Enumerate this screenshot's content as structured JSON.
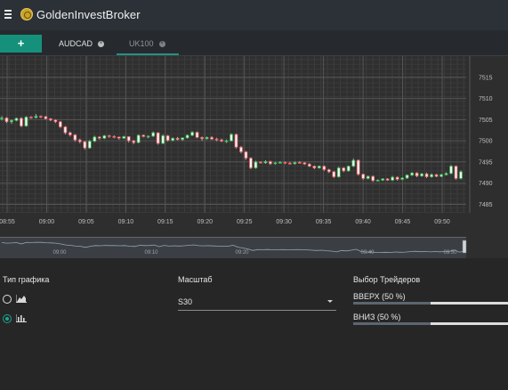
{
  "header": {
    "menu_icon": "hamburger-icon",
    "logo_icon": "gold-coin-icon",
    "brand": "GoldenInvestBroker"
  },
  "tabs": {
    "add_label": "+",
    "items": [
      {
        "label": "AUDCAD",
        "active": true
      },
      {
        "label": "UK100",
        "active": false
      }
    ]
  },
  "chart_data": {
    "type": "candlestick",
    "x_ticks": [
      "08:55",
      "09:00",
      "09:05",
      "09:10",
      "09:15",
      "09:20",
      "09:25",
      "09:30",
      "09:35",
      "09:40",
      "09:45",
      "09:50"
    ],
    "y_ticks": [
      7485,
      7490,
      7495,
      7500,
      7505,
      7510,
      7515
    ],
    "ylim": [
      7483,
      7520
    ],
    "candles": [
      [
        7505.2,
        7505.8,
        7504.8,
        7505.4
      ],
      [
        7505.4,
        7505.6,
        7504.2,
        7504.5
      ],
      [
        7504.5,
        7505.0,
        7504.0,
        7504.8
      ],
      [
        7504.8,
        7505.5,
        7504.6,
        7505.3
      ],
      [
        7505.3,
        7505.6,
        7503.2,
        7503.5
      ],
      [
        7503.5,
        7505.8,
        7503.3,
        7505.6
      ],
      [
        7505.6,
        7505.8,
        7505.2,
        7505.5
      ],
      [
        7505.5,
        7506.3,
        7505.3,
        7505.8
      ],
      [
        7505.8,
        7506.0,
        7505.4,
        7505.7
      ],
      [
        7505.7,
        7505.9,
        7505.0,
        7505.2
      ],
      [
        7505.2,
        7505.4,
        7504.6,
        7504.9
      ],
      [
        7504.9,
        7505.1,
        7504.2,
        7504.5
      ],
      [
        7504.5,
        7504.7,
        7503.0,
        7503.3
      ],
      [
        7503.3,
        7503.5,
        7501.5,
        7501.9
      ],
      [
        7501.9,
        7502.2,
        7501.0,
        7501.4
      ],
      [
        7501.4,
        7501.6,
        7499.8,
        7500.2
      ],
      [
        7500.2,
        7500.5,
        7499.4,
        7499.8
      ],
      [
        7499.8,
        7500.0,
        7497.9,
        7498.3
      ],
      [
        7498.3,
        7500.2,
        7498.1,
        7499.9
      ],
      [
        7499.9,
        7501.2,
        7499.7,
        7500.9
      ],
      [
        7500.9,
        7501.1,
        7500.3,
        7500.6
      ],
      [
        7500.6,
        7501.4,
        7500.4,
        7501.2
      ],
      [
        7501.2,
        7501.4,
        7500.7,
        7501.0
      ],
      [
        7501.0,
        7501.3,
        7500.6,
        7500.9
      ],
      [
        7500.9,
        7501.0,
        7500.3,
        7500.6
      ],
      [
        7500.6,
        7501.2,
        7500.4,
        7501.0
      ],
      [
        7501.0,
        7501.1,
        7499.6,
        7500.0
      ],
      [
        7500.0,
        7500.2,
        7499.2,
        7499.6
      ],
      [
        7499.6,
        7501.5,
        7499.4,
        7501.3
      ],
      [
        7501.3,
        7501.5,
        7500.8,
        7501.0
      ],
      [
        7501.0,
        7501.3,
        7500.6,
        7501.1
      ],
      [
        7501.1,
        7502.2,
        7500.9,
        7501.9
      ],
      [
        7501.9,
        7502.0,
        7499.1,
        7499.4
      ],
      [
        7499.4,
        7501.5,
        7499.2,
        7501.2
      ],
      [
        7501.2,
        7501.4,
        7499.8,
        7500.1
      ],
      [
        7500.1,
        7500.8,
        7499.9,
        7500.6
      ],
      [
        7500.6,
        7500.9,
        7500.1,
        7500.3
      ],
      [
        7500.3,
        7500.8,
        7500.0,
        7500.7
      ],
      [
        7500.7,
        7501.5,
        7500.5,
        7501.3
      ],
      [
        7501.3,
        7502.3,
        7501.1,
        7502.0
      ],
      [
        7502.0,
        7502.2,
        7500.6,
        7500.8
      ],
      [
        7500.8,
        7501.0,
        7500.0,
        7500.5
      ],
      [
        7500.5,
        7501.0,
        7500.3,
        7500.8
      ],
      [
        7500.8,
        7501.1,
        7500.2,
        7500.4
      ],
      [
        7500.4,
        7500.7,
        7499.9,
        7500.2
      ],
      [
        7500.2,
        7500.5,
        7499.7,
        7499.9
      ],
      [
        7499.9,
        7500.3,
        7499.5,
        7500.0
      ],
      [
        7500.0,
        7501.8,
        7499.8,
        7501.5
      ],
      [
        7501.5,
        7501.7,
        7498.2,
        7498.5
      ],
      [
        7498.5,
        7498.8,
        7497.0,
        7497.4
      ],
      [
        7497.4,
        7497.6,
        7495.5,
        7495.9
      ],
      [
        7495.9,
        7496.1,
        7493.3,
        7493.6
      ],
      [
        7493.6,
        7495.3,
        7493.4,
        7495.0
      ],
      [
        7495.0,
        7495.2,
        7494.6,
        7494.8
      ],
      [
        7494.8,
        7495.4,
        7494.6,
        7495.1
      ],
      [
        7495.1,
        7495.3,
        7494.3,
        7494.6
      ],
      [
        7494.6,
        7495.0,
        7494.4,
        7494.8
      ],
      [
        7494.8,
        7495.2,
        7494.6,
        7494.9
      ],
      [
        7494.9,
        7495.1,
        7494.5,
        7494.7
      ],
      [
        7494.7,
        7495.0,
        7494.4,
        7494.6
      ],
      [
        7494.6,
        7495.1,
        7494.4,
        7494.9
      ],
      [
        7494.9,
        7495.2,
        7494.6,
        7494.8
      ],
      [
        7494.8,
        7495.0,
        7494.3,
        7494.5
      ],
      [
        7494.5,
        7494.7,
        7493.8,
        7494.0
      ],
      [
        7494.0,
        7494.2,
        7493.3,
        7493.6
      ],
      [
        7493.6,
        7494.2,
        7493.4,
        7494.0
      ],
      [
        7494.0,
        7494.2,
        7492.9,
        7493.2
      ],
      [
        7493.2,
        7493.4,
        7492.4,
        7492.7
      ],
      [
        7492.7,
        7492.9,
        7491.2,
        7491.5
      ],
      [
        7491.5,
        7493.9,
        7491.3,
        7493.6
      ],
      [
        7493.6,
        7493.8,
        7492.6,
        7492.9
      ],
      [
        7492.9,
        7494.2,
        7492.7,
        7494.0
      ],
      [
        7494.0,
        7495.8,
        7493.8,
        7495.4
      ],
      [
        7495.4,
        7495.6,
        7491.8,
        7492.1
      ],
      [
        7492.1,
        7492.3,
        7490.8,
        7491.1
      ],
      [
        7491.1,
        7491.8,
        7490.9,
        7491.6
      ],
      [
        7491.6,
        7491.8,
        7490.3,
        7490.6
      ],
      [
        7490.6,
        7490.9,
        7490.4,
        7490.7
      ],
      [
        7490.7,
        7491.2,
        7490.5,
        7491.0
      ],
      [
        7491.0,
        7491.2,
        7490.5,
        7490.7
      ],
      [
        7490.7,
        7491.7,
        7490.5,
        7491.4
      ],
      [
        7491.4,
        7491.6,
        7490.6,
        7490.9
      ],
      [
        7490.9,
        7491.4,
        7490.7,
        7491.2
      ],
      [
        7491.2,
        7492.1,
        7491.0,
        7491.9
      ],
      [
        7491.9,
        7492.6,
        7491.7,
        7492.4
      ],
      [
        7492.4,
        7492.6,
        7491.4,
        7491.7
      ],
      [
        7491.7,
        7492.4,
        7491.5,
        7492.2
      ],
      [
        7492.2,
        7492.5,
        7491.2,
        7491.5
      ],
      [
        7491.5,
        7492.3,
        7491.3,
        7492.0
      ],
      [
        7492.0,
        7492.2,
        7491.4,
        7491.6
      ],
      [
        7491.6,
        7492.2,
        7491.4,
        7492.0
      ],
      [
        7492.0,
        7492.6,
        7491.8,
        7492.3
      ],
      [
        7492.3,
        7494.3,
        7492.1,
        7494.0
      ],
      [
        7494.0,
        7494.2,
        7490.8,
        7491.1
      ],
      [
        7491.1,
        7493.0,
        7490.9,
        7492.7
      ]
    ],
    "navigator": {
      "x_ticks": [
        "09:00",
        "09:10",
        "09:20",
        "09:40",
        "09:50"
      ]
    },
    "up_color": "#2fb34a",
    "down_color": "#e0555a"
  },
  "controls": {
    "chart_type": {
      "label": "Тип графика",
      "options": [
        {
          "icon": "area-chart-icon",
          "selected": false
        },
        {
          "icon": "candlestick-chart-icon",
          "selected": true
        }
      ]
    },
    "scale": {
      "label": "Масштаб",
      "value": "S30"
    },
    "traders": {
      "label": "Выбор Трейдеров",
      "up": {
        "label": "ВВЕРХ (50 %)",
        "fraction": 0.5
      },
      "down": {
        "label": "ВНИЗ (50 %)",
        "fraction": 0.5
      }
    }
  }
}
